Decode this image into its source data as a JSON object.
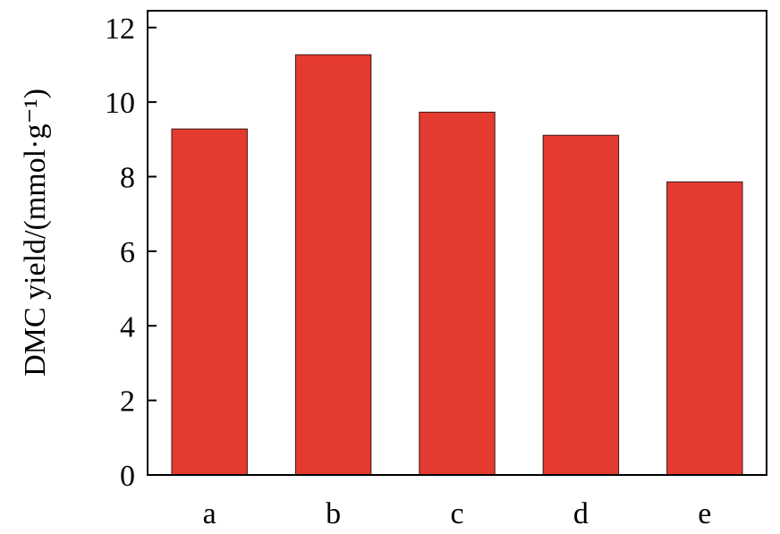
{
  "chart_data": {
    "type": "bar",
    "y_label": "DMC yield/(mmol·g⁻¹)",
    "categories": [
      "a",
      "b",
      "c",
      "d",
      "e"
    ],
    "values": [
      9.28,
      11.27,
      9.73,
      9.11,
      7.86
    ],
    "color": "#e53a30",
    "ylim": [
      0,
      12.45
    ],
    "yticks": [
      0,
      2,
      4,
      6,
      8,
      10,
      12
    ],
    "grid": false
  }
}
